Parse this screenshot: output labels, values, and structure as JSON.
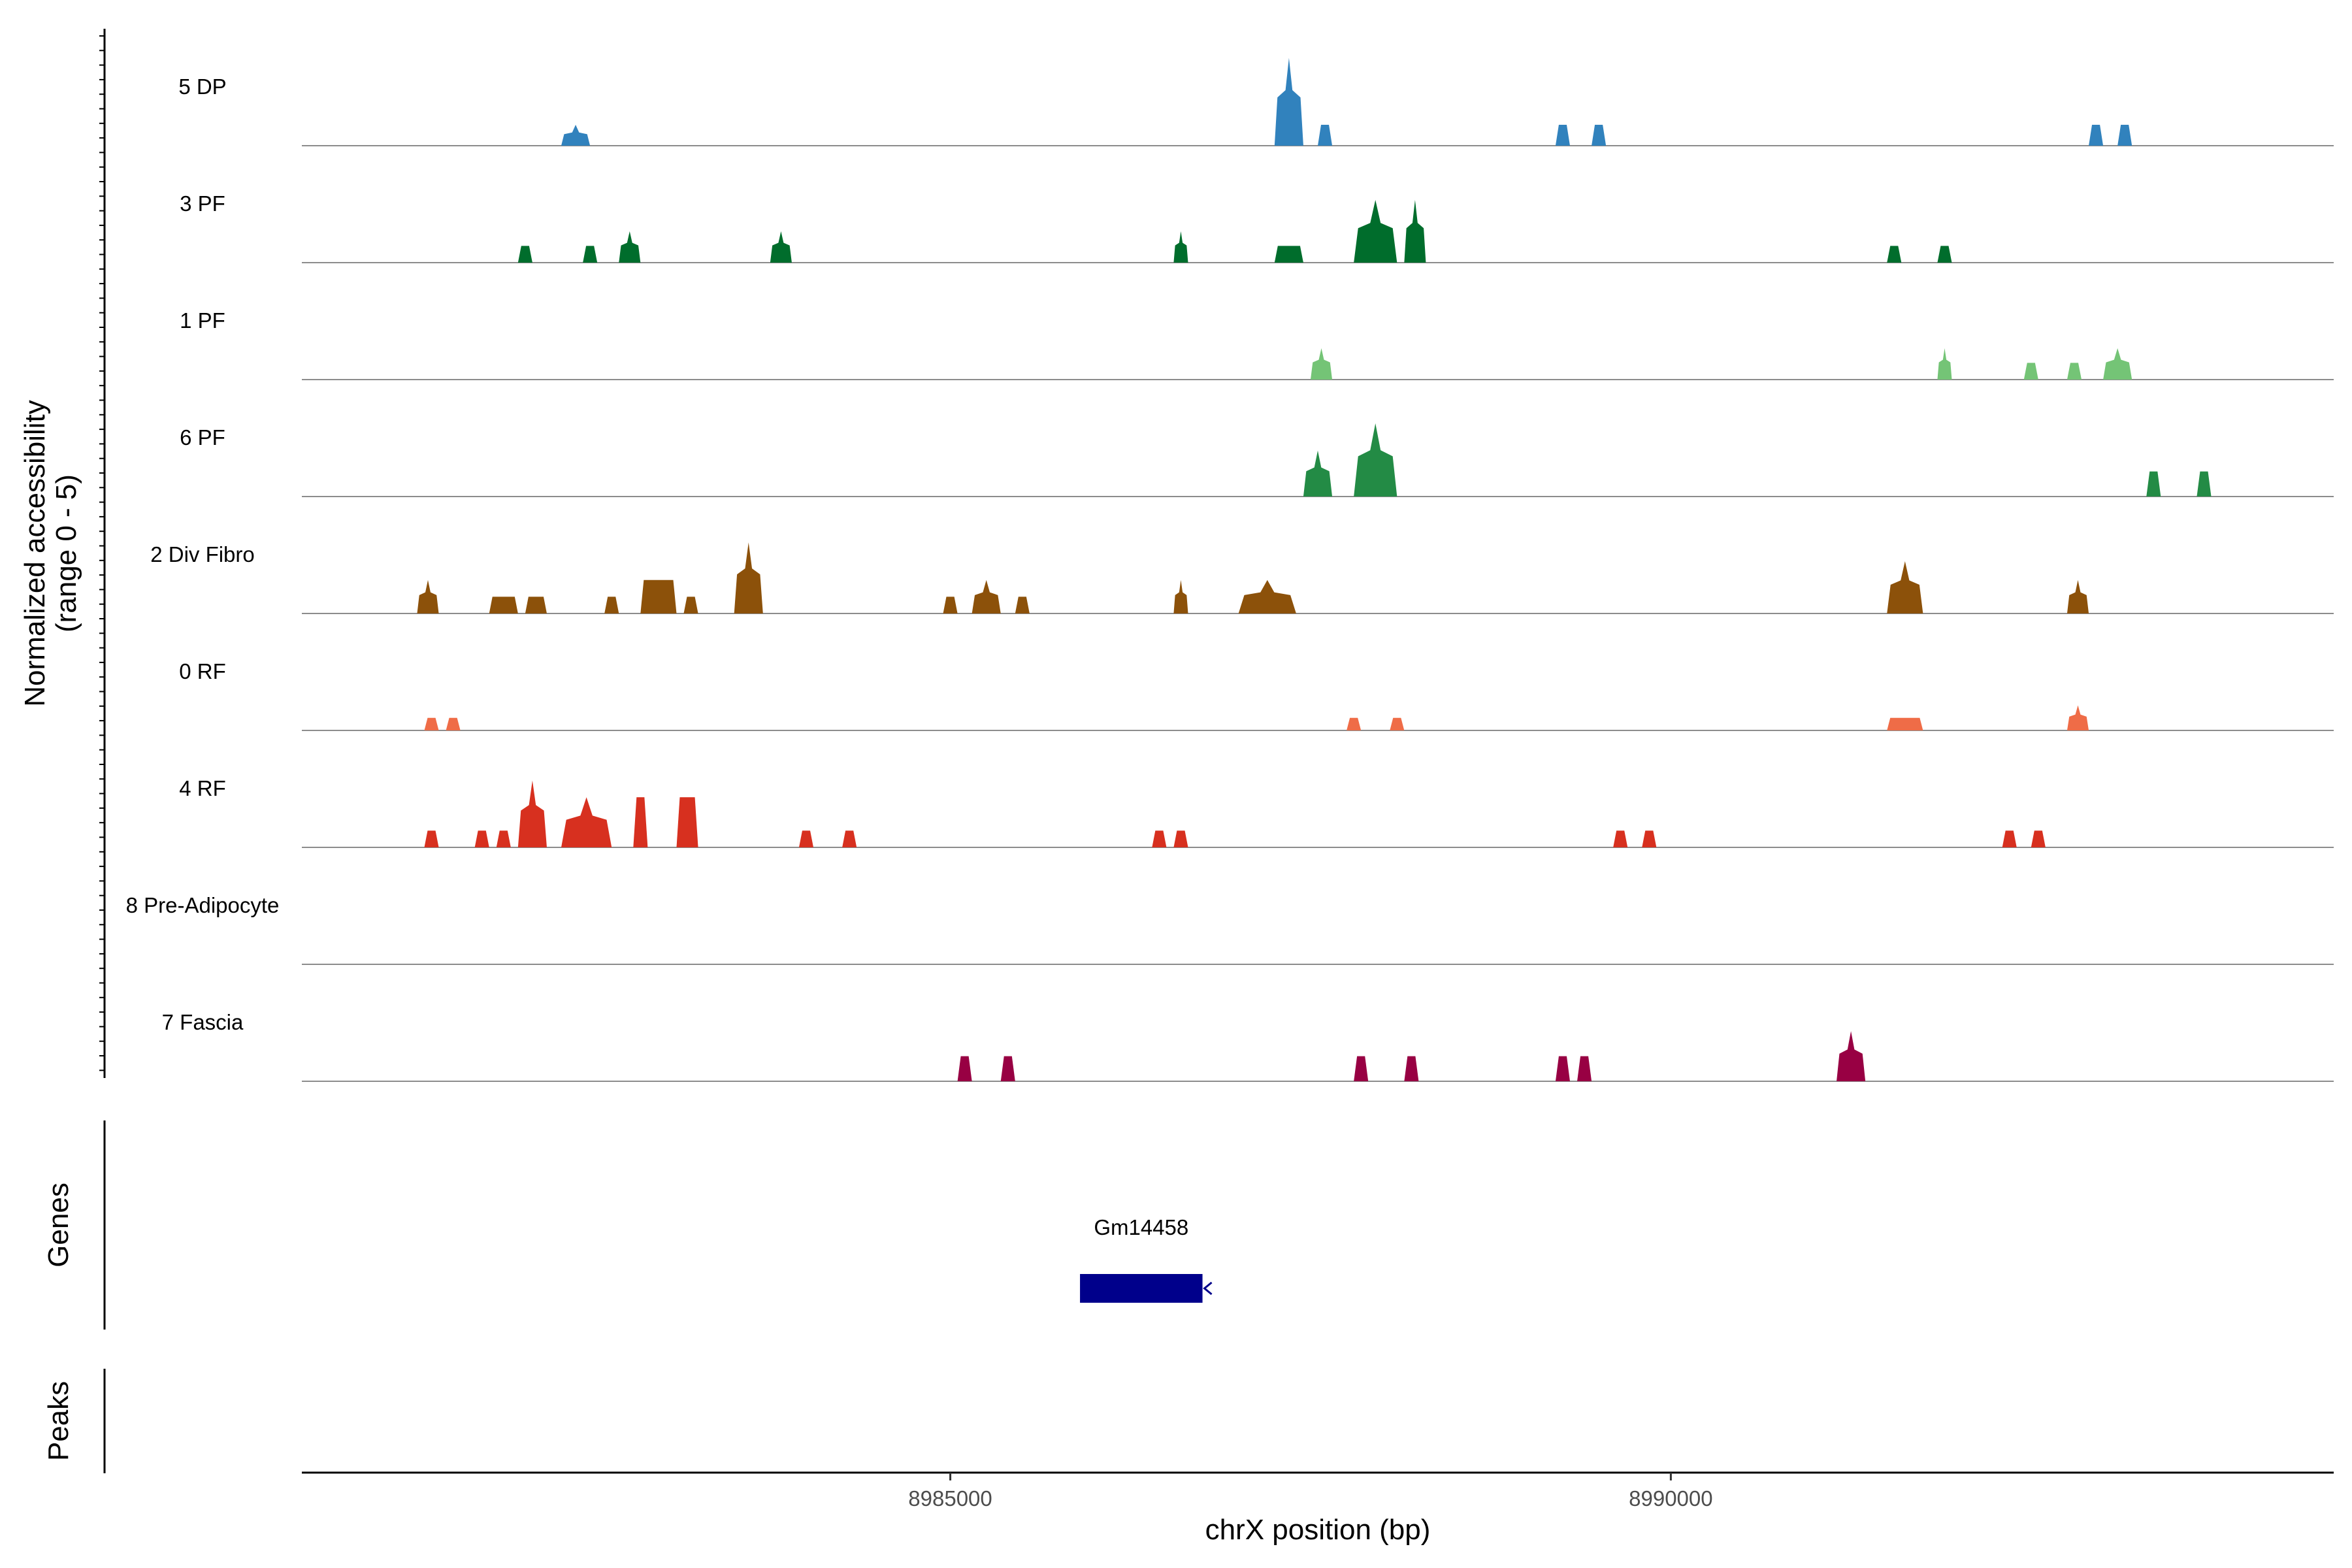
{
  "chart_data": {
    "type": "area",
    "chromosome": "chrX",
    "xlim": [
      8980500,
      8994600
    ],
    "xlabel": "chrX position (bp)",
    "ylabel": "Normalized accessibility\n(range 0 - 5)",
    "ylim": [
      0,
      5
    ],
    "x_ticks": [
      {
        "value": 8985000,
        "label": "8985000"
      },
      {
        "value": 8990000,
        "label": "8990000"
      }
    ],
    "tracks": [
      {
        "name": "5 DP",
        "color": "#3182bd",
        "peaks": [
          {
            "start": 8982300,
            "end": 8982500,
            "height": 1.0,
            "shape": "spike"
          },
          {
            "start": 8987250,
            "end": 8987450,
            "height": 4.2,
            "shape": "spike"
          },
          {
            "start": 8987550,
            "end": 8987650,
            "height": 1.0,
            "shape": "flat"
          },
          {
            "start": 8989200,
            "end": 8989300,
            "height": 1.0,
            "shape": "flat"
          },
          {
            "start": 8989450,
            "end": 8989550,
            "height": 1.0,
            "shape": "flat"
          },
          {
            "start": 8992900,
            "end": 8993000,
            "height": 1.0,
            "shape": "flat"
          },
          {
            "start": 8993100,
            "end": 8993200,
            "height": 1.0,
            "shape": "flat"
          }
        ]
      },
      {
        "name": "3 PF",
        "color": "#006d2c",
        "peaks": [
          {
            "start": 8982000,
            "end": 8982100,
            "height": 0.8,
            "shape": "flat"
          },
          {
            "start": 8982450,
            "end": 8982550,
            "height": 0.8,
            "shape": "flat"
          },
          {
            "start": 8982700,
            "end": 8982850,
            "height": 1.5,
            "shape": "spike"
          },
          {
            "start": 8983750,
            "end": 8983900,
            "height": 1.5,
            "shape": "spike"
          },
          {
            "start": 8986550,
            "end": 8986650,
            "height": 1.5,
            "shape": "spike"
          },
          {
            "start": 8987250,
            "end": 8987450,
            "height": 0.8,
            "shape": "flat"
          },
          {
            "start": 8987800,
            "end": 8988100,
            "height": 3.0,
            "shape": "spike"
          },
          {
            "start": 8988150,
            "end": 8988300,
            "height": 3.0,
            "shape": "spike"
          },
          {
            "start": 8991500,
            "end": 8991600,
            "height": 0.8,
            "shape": "flat"
          },
          {
            "start": 8991850,
            "end": 8991950,
            "height": 0.8,
            "shape": "flat"
          }
        ]
      },
      {
        "name": "1 PF",
        "color": "#74c476",
        "peaks": [
          {
            "start": 8987500,
            "end": 8987650,
            "height": 1.5,
            "shape": "spike"
          },
          {
            "start": 8991850,
            "end": 8991950,
            "height": 1.5,
            "shape": "spike"
          },
          {
            "start": 8992450,
            "end": 8992550,
            "height": 0.8,
            "shape": "flat"
          },
          {
            "start": 8992750,
            "end": 8992850,
            "height": 0.8,
            "shape": "flat"
          },
          {
            "start": 8993000,
            "end": 8993200,
            "height": 1.5,
            "shape": "spike"
          }
        ]
      },
      {
        "name": "6 PF",
        "color": "#238b45",
        "peaks": [
          {
            "start": 8987450,
            "end": 8987650,
            "height": 2.2,
            "shape": "spike"
          },
          {
            "start": 8987800,
            "end": 8988100,
            "height": 3.5,
            "shape": "spike"
          },
          {
            "start": 8993300,
            "end": 8993400,
            "height": 1.2,
            "shape": "flat"
          },
          {
            "start": 8993650,
            "end": 8993750,
            "height": 1.2,
            "shape": "flat"
          }
        ]
      },
      {
        "name": "2 Div Fibro",
        "color": "#8c510a",
        "peaks": [
          {
            "start": 8981300,
            "end": 8981450,
            "height": 1.6,
            "shape": "spike"
          },
          {
            "start": 8981800,
            "end": 8982000,
            "height": 0.8,
            "shape": "flat"
          },
          {
            "start": 8982050,
            "end": 8982200,
            "height": 0.8,
            "shape": "flat"
          },
          {
            "start": 8982600,
            "end": 8982700,
            "height": 0.8,
            "shape": "flat"
          },
          {
            "start": 8982850,
            "end": 8983100,
            "height": 1.6,
            "shape": "flat"
          },
          {
            "start": 8983150,
            "end": 8983250,
            "height": 0.8,
            "shape": "flat"
          },
          {
            "start": 8983500,
            "end": 8983700,
            "height": 3.4,
            "shape": "spike"
          },
          {
            "start": 8984950,
            "end": 8985050,
            "height": 0.8,
            "shape": "flat"
          },
          {
            "start": 8985150,
            "end": 8985350,
            "height": 1.6,
            "shape": "spike"
          },
          {
            "start": 8985450,
            "end": 8985550,
            "height": 0.8,
            "shape": "flat"
          },
          {
            "start": 8986550,
            "end": 8986650,
            "height": 1.6,
            "shape": "spike"
          },
          {
            "start": 8987000,
            "end": 8987400,
            "height": 1.6,
            "shape": "spike"
          },
          {
            "start": 8991500,
            "end": 8991750,
            "height": 2.5,
            "shape": "spike"
          },
          {
            "start": 8992750,
            "end": 8992900,
            "height": 1.6,
            "shape": "spike"
          }
        ]
      },
      {
        "name": "0 RF",
        "color": "#ef6c47",
        "peaks": [
          {
            "start": 8981350,
            "end": 8981450,
            "height": 0.6,
            "shape": "flat"
          },
          {
            "start": 8981500,
            "end": 8981600,
            "height": 0.6,
            "shape": "flat"
          },
          {
            "start": 8987750,
            "end": 8987850,
            "height": 0.6,
            "shape": "flat"
          },
          {
            "start": 8988050,
            "end": 8988150,
            "height": 0.6,
            "shape": "flat"
          },
          {
            "start": 8991500,
            "end": 8991750,
            "height": 0.6,
            "shape": "flat"
          },
          {
            "start": 8992750,
            "end": 8992900,
            "height": 1.2,
            "shape": "spike"
          }
        ]
      },
      {
        "name": "4 RF",
        "color": "#d7301f",
        "peaks": [
          {
            "start": 8981350,
            "end": 8981450,
            "height": 0.8,
            "shape": "flat"
          },
          {
            "start": 8981700,
            "end": 8981800,
            "height": 0.8,
            "shape": "flat"
          },
          {
            "start": 8981850,
            "end": 8981950,
            "height": 0.8,
            "shape": "flat"
          },
          {
            "start": 8982000,
            "end": 8982200,
            "height": 3.2,
            "shape": "spike"
          },
          {
            "start": 8982300,
            "end": 8982650,
            "height": 2.4,
            "shape": "spike"
          },
          {
            "start": 8982800,
            "end": 8982900,
            "height": 2.4,
            "shape": "flat"
          },
          {
            "start": 8983100,
            "end": 8983250,
            "height": 2.4,
            "shape": "flat"
          },
          {
            "start": 8983950,
            "end": 8984050,
            "height": 0.8,
            "shape": "flat"
          },
          {
            "start": 8984250,
            "end": 8984350,
            "height": 0.8,
            "shape": "flat"
          },
          {
            "start": 8986400,
            "end": 8986500,
            "height": 0.8,
            "shape": "flat"
          },
          {
            "start": 8986550,
            "end": 8986650,
            "height": 0.8,
            "shape": "flat"
          },
          {
            "start": 8989600,
            "end": 8989700,
            "height": 0.8,
            "shape": "flat"
          },
          {
            "start": 8989800,
            "end": 8989900,
            "height": 0.8,
            "shape": "flat"
          },
          {
            "start": 8992300,
            "end": 8992400,
            "height": 0.8,
            "shape": "flat"
          },
          {
            "start": 8992500,
            "end": 8992600,
            "height": 0.8,
            "shape": "flat"
          }
        ]
      },
      {
        "name": "8 Pre-Adipocyte",
        "color": "#7f7f7f",
        "peaks": []
      },
      {
        "name": "7 Fascia",
        "color": "#980043",
        "peaks": [
          {
            "start": 8985050,
            "end": 8985150,
            "height": 1.2,
            "shape": "flat"
          },
          {
            "start": 8985350,
            "end": 8985450,
            "height": 1.2,
            "shape": "flat"
          },
          {
            "start": 8987800,
            "end": 8987900,
            "height": 1.2,
            "shape": "flat"
          },
          {
            "start": 8988150,
            "end": 8988250,
            "height": 1.2,
            "shape": "flat"
          },
          {
            "start": 8989200,
            "end": 8989300,
            "height": 1.2,
            "shape": "flat"
          },
          {
            "start": 8989350,
            "end": 8989450,
            "height": 1.2,
            "shape": "flat"
          },
          {
            "start": 8991150,
            "end": 8991350,
            "height": 2.4,
            "shape": "spike"
          }
        ]
      }
    ],
    "genes": {
      "title": "Genes",
      "items": [
        {
          "name": "Gm14458",
          "start": 8985900,
          "end": 8986750,
          "strand": "-",
          "color": "#00008b"
        }
      ]
    },
    "peaks_track": {
      "title": "Peaks",
      "regions": []
    }
  }
}
